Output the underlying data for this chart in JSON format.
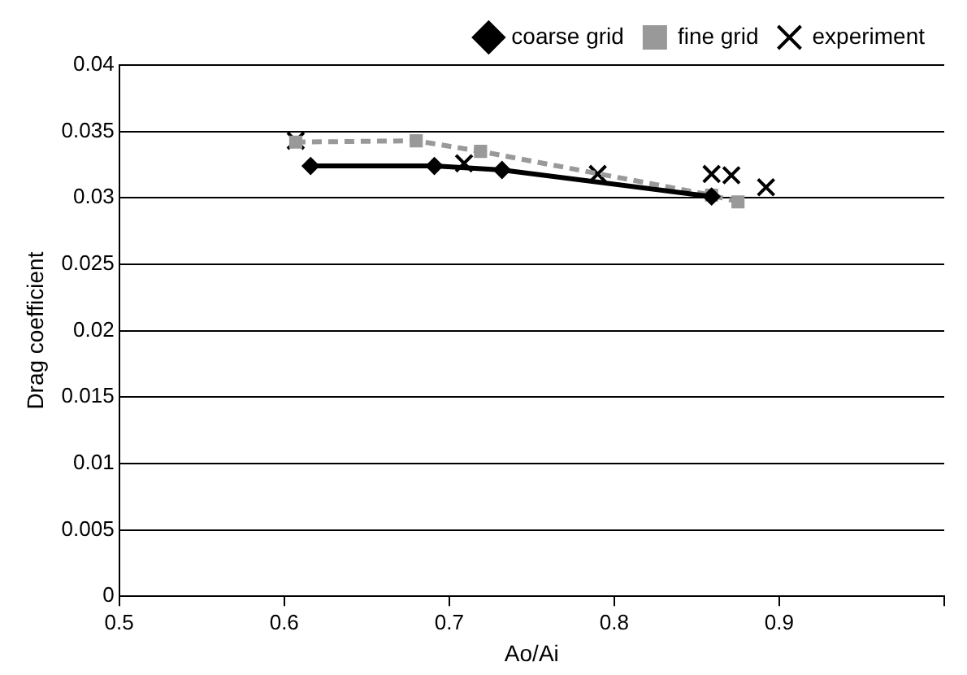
{
  "chart_data": {
    "type": "line",
    "xlabel": "Ao/Ai",
    "ylabel": "Drag coefficient",
    "xlim": [
      0.5,
      1
    ],
    "xticks": [
      0.5,
      0.6,
      0.7,
      0.8,
      0.9,
      {
        "value": 1,
        "label": null
      }
    ],
    "ylim": [
      0,
      0.04
    ],
    "yticks": [
      0,
      0.005,
      0.01,
      0.015,
      0.02,
      0.025,
      0.03,
      0.035,
      0.04
    ],
    "grid": "y",
    "legend": "top right",
    "series": [
      {
        "name": "coarse grid",
        "color": "#000000",
        "marker": "diamond",
        "line_style": "solid",
        "x": [
          0.616,
          0.691,
          0.732,
          0.859
        ],
        "values": [
          0.0324,
          0.0324,
          0.0321,
          0.0301
        ]
      },
      {
        "name": "fine grid",
        "color": "#999999",
        "marker": "square",
        "line_style": "dashed",
        "x": [
          0.607,
          0.68,
          0.719,
          0.859,
          0.875
        ],
        "values": [
          0.0342,
          0.0343,
          0.0335,
          0.0302,
          0.0297
        ]
      },
      {
        "name": "experiment",
        "type": "scatter",
        "color": "#000000",
        "marker": "cross",
        "x": [
          0.607,
          0.709,
          0.79,
          0.859,
          0.871,
          0.892
        ],
        "values": [
          0.0343,
          0.0326,
          0.0318,
          0.0318,
          0.0317,
          0.0308
        ]
      }
    ]
  }
}
